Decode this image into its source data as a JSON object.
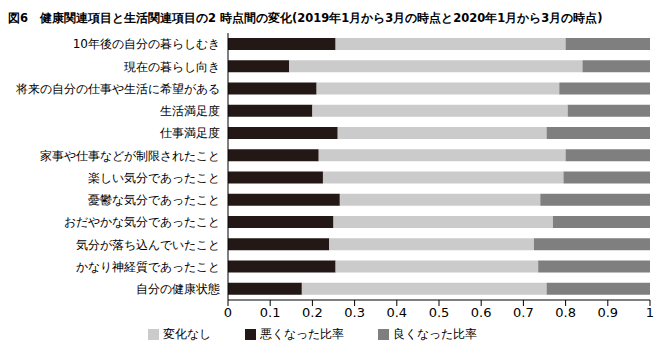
{
  "chart_data": {
    "type": "bar",
    "title": "図6　健康関連項目と生活関連項目の2 時点間の変化(2019年1月から3月の時点と2020年1月から3月の時点)",
    "orientation": "horizontal",
    "stacked": true,
    "grid": false,
    "legend": "bottom",
    "categories": [
      "10年後の自分の暮らしむき",
      "現在の暮らし向き",
      "将来の自分の仕事や生活に希望がある",
      "生活満足度",
      "仕事満足度",
      "家事や仕事などが制限されたこと",
      "楽しい気分であったこと",
      "憂鬱な気分であったこと",
      "おだやかな気分であったこと",
      "気分が落ち込んでいたこと",
      "かなり神経質であったこと",
      "自分の健康状態"
    ],
    "series": [
      {
        "name": "悪くなった比率",
        "color": "#231815",
        "values": [
          0.255,
          0.145,
          0.21,
          0.2,
          0.26,
          0.215,
          0.225,
          0.265,
          0.25,
          0.24,
          0.255,
          0.175
        ]
      },
      {
        "name": "変化なし",
        "color": "#cbcbcb",
        "values": [
          0.545,
          0.695,
          0.575,
          0.605,
          0.495,
          0.585,
          0.57,
          0.475,
          0.52,
          0.485,
          0.48,
          0.58
        ]
      },
      {
        "name": "良くなった比率",
        "color": "#7f7f7f",
        "values": [
          0.2,
          0.16,
          0.215,
          0.195,
          0.245,
          0.2,
          0.205,
          0.26,
          0.23,
          0.275,
          0.265,
          0.245
        ]
      }
    ],
    "xlim": [
      0,
      1
    ],
    "xticks": [
      0,
      0.1,
      0.2,
      0.3,
      0.4,
      0.5,
      0.6,
      0.7,
      0.8,
      0.9,
      1
    ]
  }
}
